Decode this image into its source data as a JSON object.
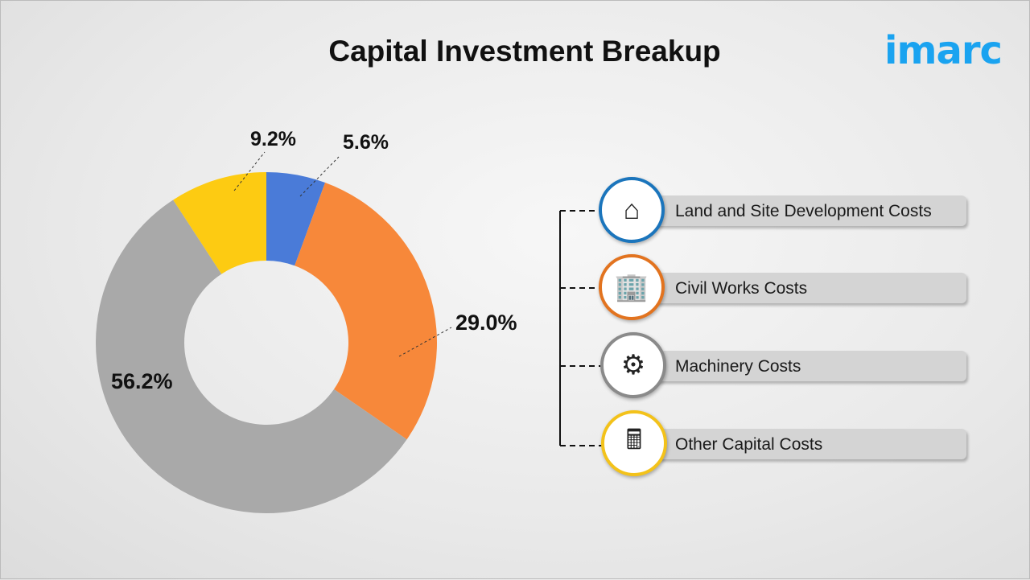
{
  "title": "Capital Investment Breakup",
  "logo": "imarc",
  "chart_data": {
    "type": "pie",
    "donut": true,
    "title": "Capital Investment Breakup",
    "categories": [
      "Land and Site Development Costs",
      "Civil Works Costs",
      "Machinery Costs",
      "Other Capital Costs"
    ],
    "values": [
      5.6,
      29.0,
      56.2,
      9.2
    ],
    "data_labels": [
      "5.6%",
      "29.0%",
      "56.2%",
      "9.2%"
    ],
    "colors": [
      "#4a7bd8",
      "#f7883a",
      "#a9a9a9",
      "#fdcb12"
    ],
    "start": "12 o'clock, clockwise",
    "legend": "right"
  },
  "legend": [
    {
      "label": "Land and Site Development Costs",
      "icon": "land-house-layers-icon",
      "color": "#1b75bc"
    },
    {
      "label": "Civil Works Costs",
      "icon": "civil-worker-building-icon",
      "color": "#e2731f"
    },
    {
      "label": "Machinery Costs",
      "icon": "machinery-crane-dollar-icon",
      "color": "#8a8a8a"
    },
    {
      "label": "Other Capital Costs",
      "icon": "calculator-coins-icon",
      "color": "#f3c21a"
    }
  ]
}
